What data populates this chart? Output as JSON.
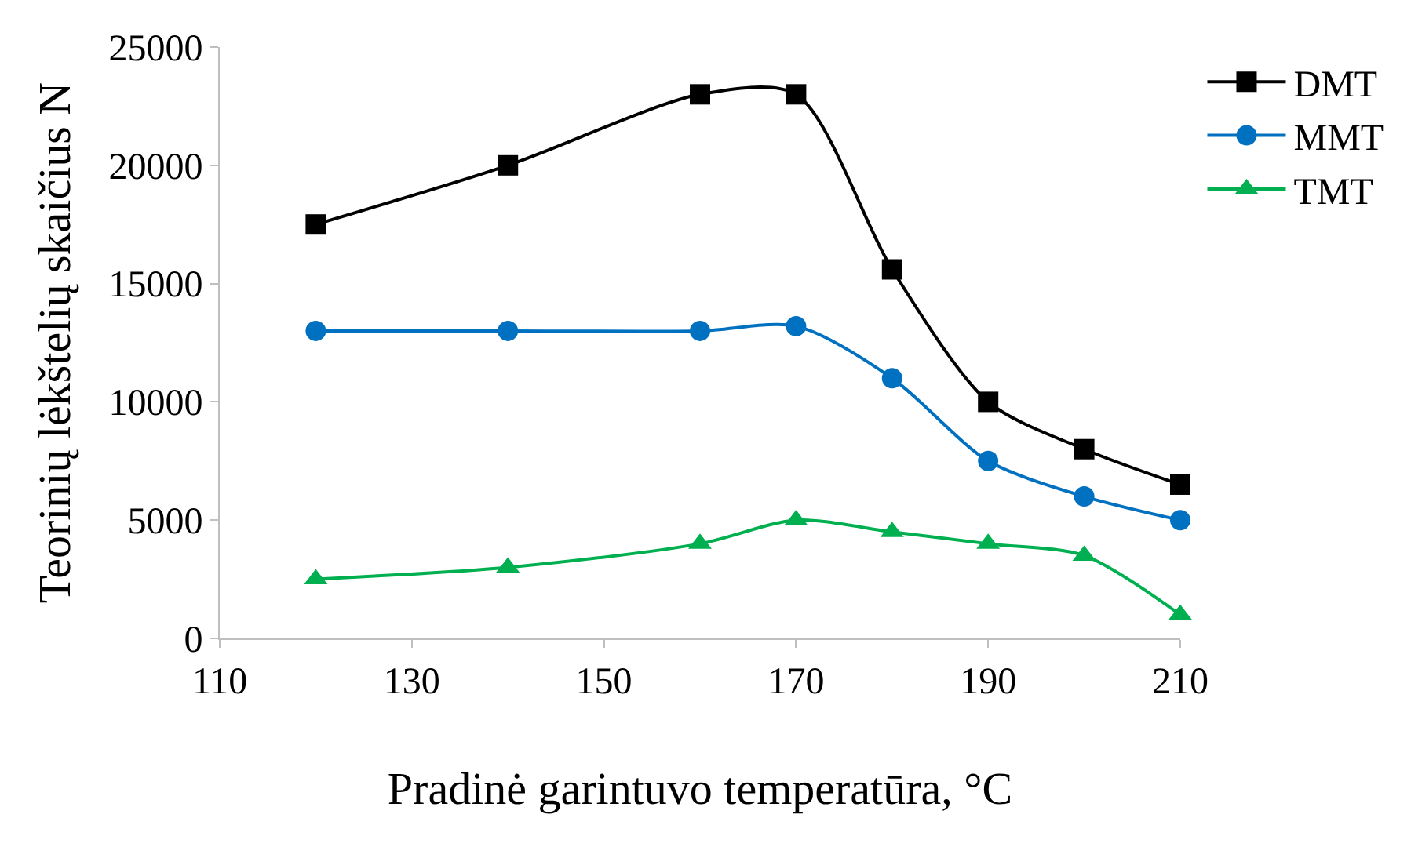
{
  "chart_data": {
    "type": "line",
    "xlabel": "Pradinė garintuvo temperatūra, °C",
    "ylabel": "Teorinių lėkštelių skaičius N",
    "x": [
      120,
      140,
      160,
      170,
      180,
      190,
      200,
      210
    ],
    "series": [
      {
        "name": "DMT",
        "color": "#000000",
        "marker": "square",
        "values": [
          17500,
          20000,
          23000,
          23000,
          15600,
          10000,
          8000,
          6500
        ]
      },
      {
        "name": "MMT",
        "color": "#0070c0",
        "marker": "circle",
        "values": [
          13000,
          13000,
          13000,
          13200,
          11000,
          7500,
          6000,
          5000
        ]
      },
      {
        "name": "TMT",
        "color": "#00b050",
        "marker": "triangle",
        "values": [
          2500,
          3000,
          4000,
          5000,
          4500,
          4000,
          3500,
          1000
        ]
      }
    ],
    "xlim": [
      110,
      210
    ],
    "xticks": [
      110,
      130,
      150,
      170,
      190,
      210
    ],
    "ylim": [
      0,
      25000
    ],
    "yticks": [
      0,
      5000,
      10000,
      15000,
      20000,
      25000
    ],
    "legend": "top right",
    "line_style": "solid"
  }
}
